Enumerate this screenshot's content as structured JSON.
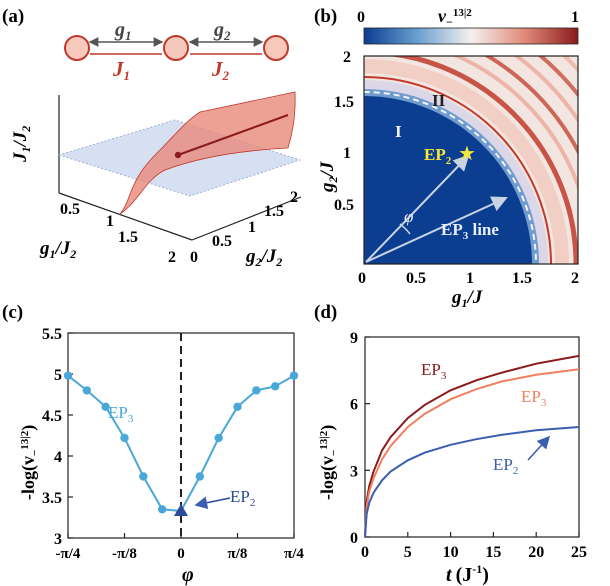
{
  "panel_labels": {
    "a": "(a)",
    "b": "(b)",
    "c": "(c)",
    "d": "(d)"
  },
  "colors": {
    "ring": "#c0392b",
    "ring_fill": "#f7c9bd",
    "J_text": "#c0392b",
    "surface": "#e8897a",
    "plane": "#c9d6ee",
    "dark_blue": "#0b3d91",
    "curve_c": "#4aa8d8",
    "ep2_marker": "#2b4a9a",
    "d_ep3_dark": "#8b1a1a",
    "d_ep3_light": "#f08060",
    "d_ep2": "#3a5fb0",
    "star": "#f5e63a"
  },
  "panel_a": {
    "g1_label": "g",
    "g1_sub": "1",
    "g2_label": "g",
    "g2_sub": "2",
    "J1_label": "J",
    "J1_sub": "1",
    "J2_label": "J",
    "J2_sub": "2",
    "z_label": "J",
    "z_sub1": "1",
    "z_mid": "/J",
    "z_sub2": "2",
    "x_label": "g",
    "x_sub1": "1",
    "x_mid": "/J",
    "x_sub2": "2",
    "y_label": "g",
    "y_sub1": "2",
    "y_mid": "/J",
    "y_sub2": "2",
    "x_ticks": [
      "0.5",
      "1",
      "1.5",
      "2"
    ],
    "y_ticks": [
      "0",
      "0.5",
      "1",
      "1.5",
      "2"
    ]
  },
  "panel_b": {
    "colorbar_title": "v",
    "colorbar_title_sub": "−",
    "colorbar_title_sup": "13|2",
    "colorbar_min": "0",
    "colorbar_max": "1",
    "region_I": "I",
    "region_II": "II",
    "ep2_label": "EP",
    "ep2_sub": "2",
    "ep3_label": "EP",
    "ep3_sub": "3",
    "ep3_suffix": " line",
    "phi_label": "φ",
    "xlabel": "g",
    "xlabel_sub": "1",
    "xlabel_suffix": "/J",
    "ylabel": "g",
    "ylabel_sub": "2",
    "ylabel_suffix": "/J",
    "x_ticks": [
      "0",
      "0.5",
      "1",
      "1.5",
      "2"
    ],
    "y_ticks": [
      "0.5",
      "1",
      "1.5",
      "2"
    ]
  },
  "panel_c_text": {
    "ylabel_pre": "-log(v",
    "ylabel_sub": "−",
    "ylabel_sup": "13|2",
    "ylabel_post": ")",
    "xlabel": "φ",
    "curve_label": "EP",
    "curve_label_sub": "3",
    "marker_label": "EP",
    "marker_label_sub": "2"
  },
  "panel_d_text": {
    "ylabel_pre": "-log(v",
    "ylabel_sub": "−",
    "ylabel_sup": "13|2",
    "ylabel_post": ")",
    "xlabel": "t",
    "xlabel_unit": "(J",
    "xlabel_sup": "-1",
    "xlabel_close": ")",
    "labels": [
      {
        "text": "EP",
        "sub": "3"
      },
      {
        "text": "EP",
        "sub": "3"
      },
      {
        "text": "EP",
        "sub": "2"
      }
    ]
  },
  "chart_data": [
    {
      "type": "line",
      "title": "(c)",
      "xlabel": "φ",
      "ylabel": "-log(v−13|2)",
      "xlim": [
        -0.7854,
        0.7854
      ],
      "ylim": [
        3,
        5.5
      ],
      "x_tick_labels": [
        "-π/4",
        "-π/8",
        "0",
        "π/8",
        "π/4"
      ],
      "x_tick_values": [
        -0.7854,
        -0.3927,
        0,
        0.3927,
        0.7854
      ],
      "y_ticks": [
        3,
        3.5,
        4,
        4.5,
        5,
        5.5
      ],
      "series": [
        {
          "name": "EP3",
          "x": [
            -0.7854,
            -0.6545,
            -0.5236,
            -0.3927,
            -0.2618,
            -0.1309,
            0,
            0.1309,
            0.2618,
            0.3927,
            0.5236,
            0.6545,
            0.7854
          ],
          "values": [
            4.98,
            4.8,
            4.6,
            4.22,
            3.75,
            3.35,
            3.33,
            3.75,
            4.22,
            4.6,
            4.8,
            4.85,
            4.98
          ]
        }
      ],
      "ep2_point": {
        "x": 0,
        "y": 3.33
      },
      "vline_x": 0
    },
    {
      "type": "line",
      "title": "(d)",
      "xlabel": "t (J^-1)",
      "ylabel": "-log(v−13|2)",
      "xlim": [
        0,
        25
      ],
      "ylim": [
        0,
        9
      ],
      "x_ticks": [
        0,
        5,
        10,
        15,
        20,
        25
      ],
      "y_ticks": [
        0,
        3,
        6,
        9
      ],
      "series": [
        {
          "name": "EP3 (dark)",
          "x": [
            0,
            0.2,
            0.5,
            1,
            2,
            3,
            5,
            7,
            10,
            13,
            16,
            20,
            25
          ],
          "values": [
            0,
            1.6,
            2.3,
            2.95,
            3.9,
            4.5,
            5.35,
            5.95,
            6.6,
            7.05,
            7.4,
            7.8,
            8.15
          ]
        },
        {
          "name": "EP3 (light)",
          "x": [
            0,
            0.2,
            0.5,
            1,
            2,
            3,
            5,
            7,
            10,
            13,
            16,
            20,
            25
          ],
          "values": [
            0,
            1.4,
            2.05,
            2.65,
            3.5,
            4.1,
            4.95,
            5.55,
            6.2,
            6.65,
            7.0,
            7.3,
            7.55
          ]
        },
        {
          "name": "EP2",
          "x": [
            0,
            0.2,
            0.5,
            1,
            2,
            3,
            5,
            7,
            10,
            13,
            16,
            20,
            25
          ],
          "values": [
            0,
            1.05,
            1.55,
            2.0,
            2.55,
            2.95,
            3.45,
            3.8,
            4.15,
            4.4,
            4.6,
            4.8,
            4.95
          ]
        }
      ]
    }
  ]
}
